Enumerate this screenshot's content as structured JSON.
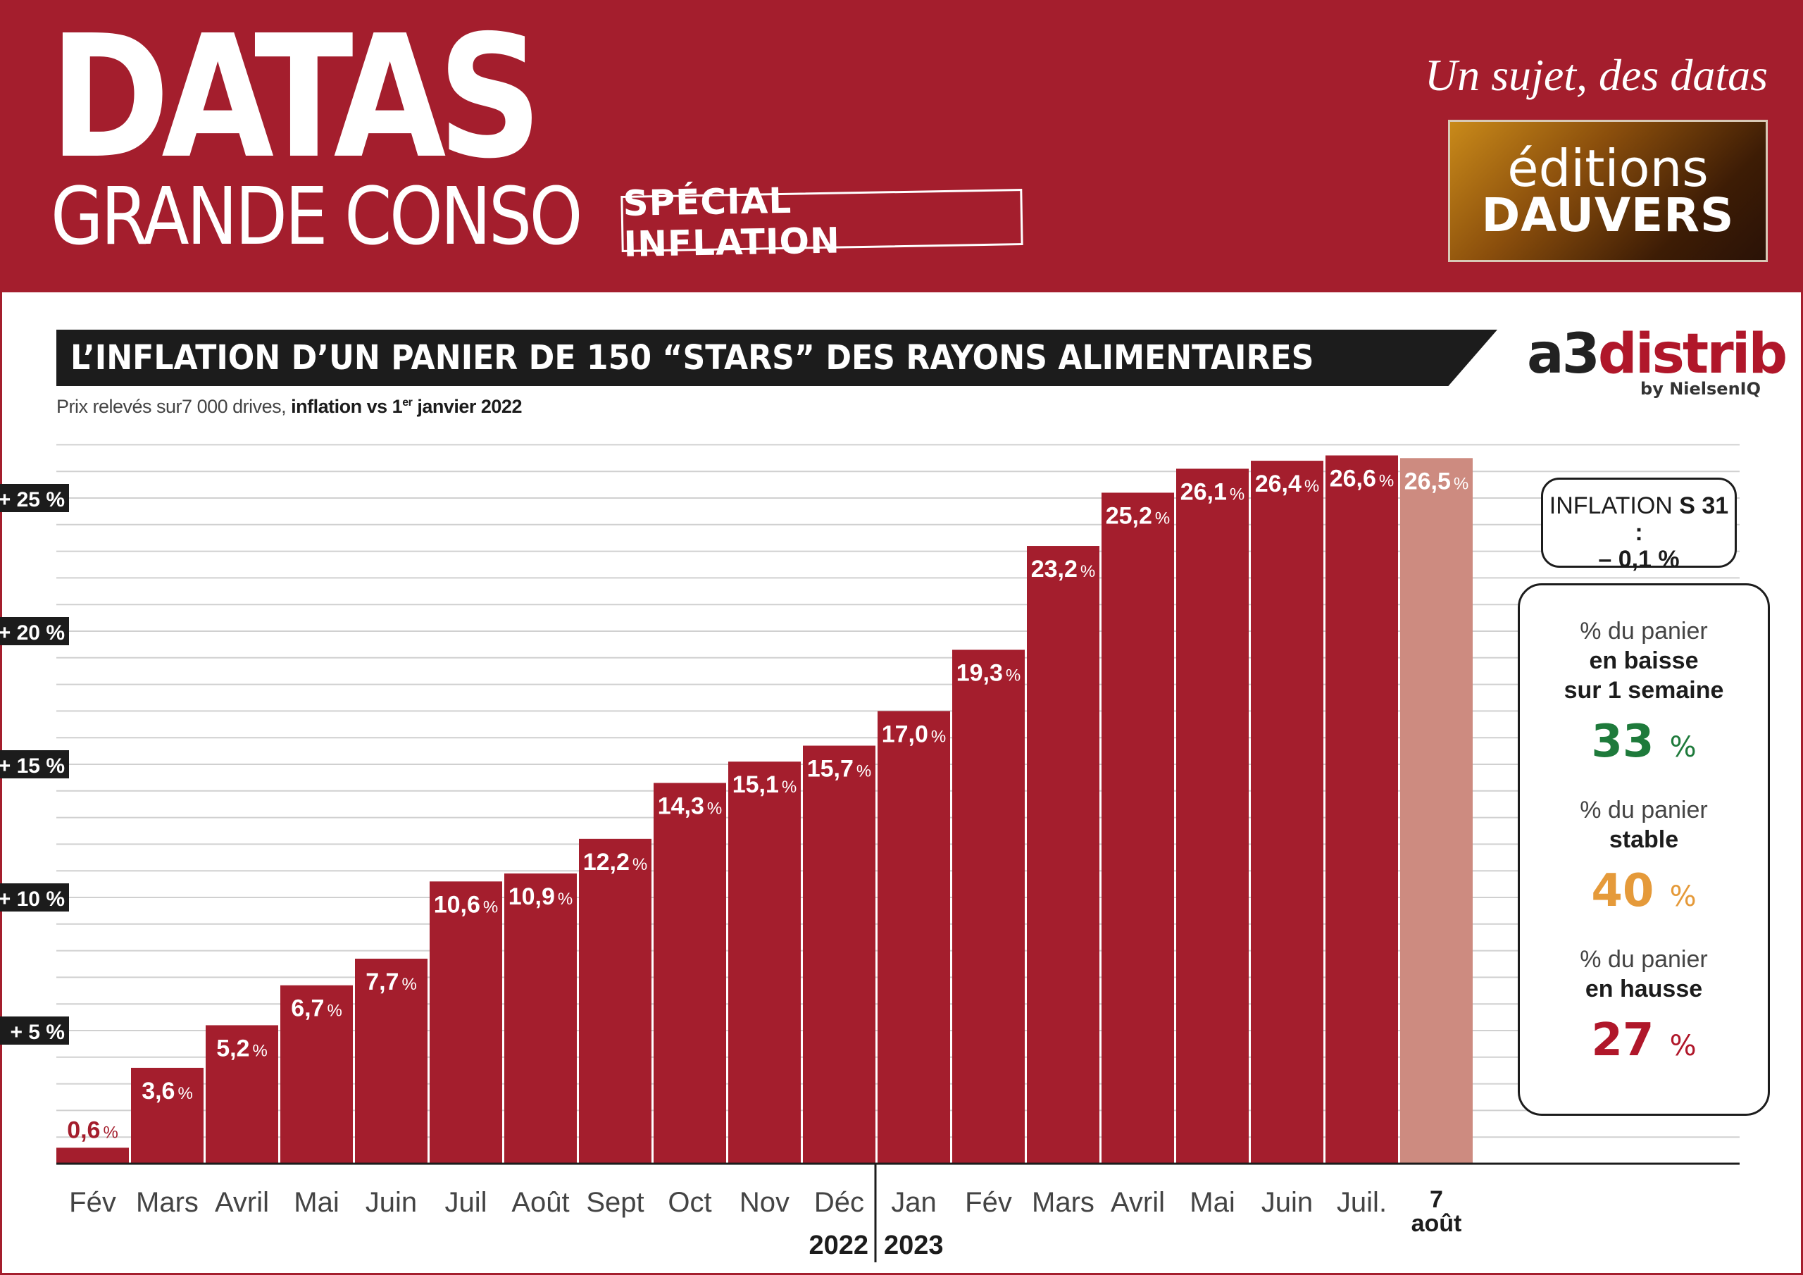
{
  "header": {
    "brand": "DATAS",
    "brand_sub": "GRANDE CONSO",
    "special": "SPÉCIAL INFLATION",
    "tagline": "Un sujet, des datas",
    "publisher_line1": "éditions",
    "publisher_line2": "DAUVERS"
  },
  "source": {
    "name_a3": "a3",
    "name_distrib": "distrib",
    "by": "by NielsenIQ"
  },
  "summary": {
    "s31_label": "INFLATION",
    "s31_week": "S 31 :",
    "s31_value": "– 0,1 %",
    "baisse_label": "% du panier",
    "baisse_bold1": "en baisse",
    "baisse_bold2": "sur 1 semaine",
    "baisse_value": "33",
    "stable_label": "% du panier",
    "stable_bold": "stable",
    "stable_value": "40",
    "hausse_label": "% du panier",
    "hausse_bold": "en hausse",
    "hausse_value": "27",
    "pct_sign": "%"
  },
  "colors": {
    "bar": "#a41e2d",
    "bar_highlight": "#cd8b80",
    "header": "#a41e2d"
  },
  "chart_data": {
    "type": "bar",
    "title": "L’INFLATION D’UN PANIER DE 150 “STARS” DES RAYONS ALIMENTAIRES",
    "subtitle_prefix": "Prix relevés sur7 000 drives,",
    "subtitle_bold": "inflation vs 1",
    "subtitle_sup": "er",
    "subtitle_bold_end": "janvier 2022",
    "categories": [
      "Fév",
      "Mars",
      "Avril",
      "Mai",
      "Juin",
      "Juil",
      "Août",
      "Sept",
      "Oct",
      "Nov",
      "Déc",
      "Jan",
      "Fév",
      "Mars",
      "Avril",
      "Mai",
      "Juin",
      "Juil.",
      "7 août"
    ],
    "values": [
      0.6,
      3.6,
      5.2,
      6.7,
      7.7,
      10.6,
      10.9,
      12.2,
      14.3,
      15.1,
      15.7,
      17.0,
      19.3,
      23.2,
      25.2,
      26.1,
      26.4,
      26.6,
      26.5
    ],
    "value_labels": [
      "0,6",
      "3,6",
      "5,2",
      "6,7",
      "7,7",
      "10,6",
      "10,9",
      "12,2",
      "14,3",
      "15,1",
      "15,7",
      "17,0",
      "19,3",
      "23,2",
      "25,2",
      "26,1",
      "26,4",
      "26,6",
      "26,5"
    ],
    "years": [
      "2022",
      "2023"
    ],
    "y_ticks": [
      5,
      10,
      15,
      20,
      25
    ],
    "y_tick_labels": [
      "+ 5 %",
      "+ 10 %",
      "+ 15 %",
      "+ 20 %",
      "+ 25 %"
    ],
    "ylim": [
      0,
      27
    ],
    "highlight_index": 18,
    "grid": true,
    "legend": "none"
  }
}
